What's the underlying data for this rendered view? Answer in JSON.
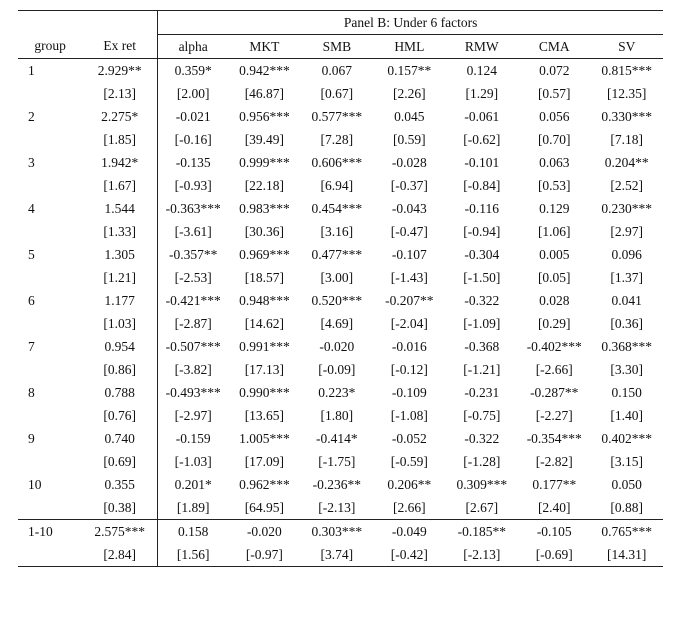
{
  "panel_title": "Panel B: Under 6 factors",
  "columns": [
    "group",
    "Ex ret",
    "alpha",
    "MKT",
    "SMB",
    "HML",
    "RMW",
    "CMA",
    "SV"
  ],
  "groups": [
    {
      "group": "1",
      "coef": [
        "2.929**",
        "0.359*",
        "0.942***",
        "0.067",
        "0.157**",
        "0.124",
        "0.072",
        "0.815***"
      ],
      "t": [
        "[2.13]",
        "[2.00]",
        "[46.87]",
        "[0.67]",
        "[2.26]",
        "[1.29]",
        "[0.57]",
        "[12.35]"
      ]
    },
    {
      "group": "2",
      "coef": [
        "2.275*",
        "-0.021",
        "0.956***",
        "0.577***",
        "0.045",
        "-0.061",
        "0.056",
        "0.330***"
      ],
      "t": [
        "[1.85]",
        "[-0.16]",
        "[39.49]",
        "[7.28]",
        "[0.59]",
        "[-0.62]",
        "[0.70]",
        "[7.18]"
      ]
    },
    {
      "group": "3",
      "coef": [
        "1.942*",
        "-0.135",
        "0.999***",
        "0.606***",
        "-0.028",
        "-0.101",
        "0.063",
        "0.204**"
      ],
      "t": [
        "[1.67]",
        "[-0.93]",
        "[22.18]",
        "[6.94]",
        "[-0.37]",
        "[-0.84]",
        "[0.53]",
        "[2.52]"
      ]
    },
    {
      "group": "4",
      "coef": [
        "1.544",
        "-0.363***",
        "0.983***",
        "0.454***",
        "-0.043",
        "-0.116",
        "0.129",
        "0.230***"
      ],
      "t": [
        "[1.33]",
        "[-3.61]",
        "[30.36]",
        "[3.16]",
        "[-0.47]",
        "[-0.94]",
        "[1.06]",
        "[2.97]"
      ]
    },
    {
      "group": "5",
      "coef": [
        "1.305",
        "-0.357**",
        "0.969***",
        "0.477***",
        "-0.107",
        "-0.304",
        "0.005",
        "0.096"
      ],
      "t": [
        "[1.21]",
        "[-2.53]",
        "[18.57]",
        "[3.00]",
        "[-1.43]",
        "[-1.50]",
        "[0.05]",
        "[1.37]"
      ]
    },
    {
      "group": "6",
      "coef": [
        "1.177",
        "-0.421***",
        "0.948***",
        "0.520***",
        "-0.207**",
        "-0.322",
        "0.028",
        "0.041"
      ],
      "t": [
        "[1.03]",
        "[-2.87]",
        "[14.62]",
        "[4.69]",
        "[-2.04]",
        "[-1.09]",
        "[0.29]",
        "[0.36]"
      ]
    },
    {
      "group": "7",
      "coef": [
        "0.954",
        "-0.507***",
        "0.991***",
        "-0.020",
        "-0.016",
        "-0.368",
        "-0.402***",
        "0.368***"
      ],
      "t": [
        "[0.86]",
        "[-3.82]",
        "[17.13]",
        "[-0.09]",
        "[-0.12]",
        "[-1.21]",
        "[-2.66]",
        "[3.30]"
      ]
    },
    {
      "group": "8",
      "coef": [
        "0.788",
        "-0.493***",
        "0.990***",
        "0.223*",
        "-0.109",
        "-0.231",
        "-0.287**",
        "0.150"
      ],
      "t": [
        "[0.76]",
        "[-2.97]",
        "[13.65]",
        "[1.80]",
        "[-1.08]",
        "[-0.75]",
        "[-2.27]",
        "[1.40]"
      ]
    },
    {
      "group": "9",
      "coef": [
        "0.740",
        "-0.159",
        "1.005***",
        "-0.414*",
        "-0.052",
        "-0.322",
        "-0.354***",
        "0.402***"
      ],
      "t": [
        "[0.69]",
        "[-1.03]",
        "[17.09]",
        "[-1.75]",
        "[-0.59]",
        "[-1.28]",
        "[-2.82]",
        "[3.15]"
      ]
    },
    {
      "group": "10",
      "coef": [
        "0.355",
        "0.201*",
        "0.962***",
        "-0.236**",
        "0.206**",
        "0.309***",
        "0.177**",
        "0.050"
      ],
      "t": [
        "[0.38]",
        "[1.89]",
        "[64.95]",
        "[-2.13]",
        "[2.66]",
        "[2.67]",
        "[2.40]",
        "[0.88]"
      ]
    },
    {
      "group": "1-10",
      "coef": [
        "2.575***",
        "0.158",
        "-0.020",
        "0.303***",
        "-0.049",
        "-0.185**",
        "-0.105",
        "0.765***"
      ],
      "t": [
        "[2.84]",
        "[1.56]",
        "[-0.97]",
        "[3.74]",
        "[-0.42]",
        "[-2.13]",
        "[-0.69]",
        "[14.31]"
      ]
    }
  ]
}
